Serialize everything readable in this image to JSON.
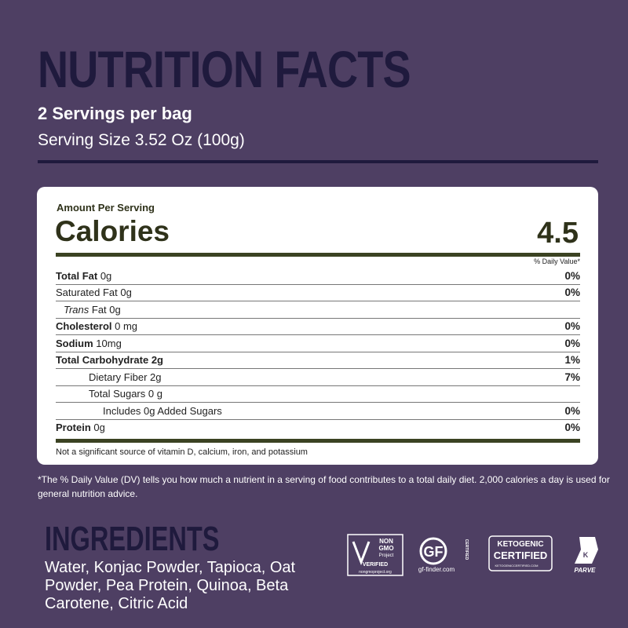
{
  "header": {
    "title": "NUTRITION FACTS",
    "servings": "2 Servings per bag",
    "serving_size": "Serving Size 3.52 Oz (100g)"
  },
  "label": {
    "amount_per_serving": "Amount Per Serving",
    "calories_label": "Calories",
    "calories_value": "4.5",
    "dv_header": "% Daily Value*",
    "rows": [
      {
        "name": "Total Fat",
        "amount": "0g",
        "dv": "0%",
        "bold": true,
        "indent": 0
      },
      {
        "name": "Saturated Fat 0g",
        "dv": "0%",
        "bold": false,
        "indent": 0
      },
      {
        "italic": "Trans",
        "name": "Fat 0g",
        "bold": false,
        "indent": 1
      },
      {
        "name": "Cholesterol",
        "amount": "0 mg",
        "dv": "0%",
        "bold": true,
        "indent": 0
      },
      {
        "name": "Sodium",
        "amount": "10mg",
        "dv": "0%",
        "bold": true,
        "indent": 0
      },
      {
        "name": "Total Carbohydrate 2g",
        "dv": "1%",
        "bold": true,
        "indent": 0
      },
      {
        "name": "Dietary Fiber 2g",
        "dv": "7%",
        "bold": false,
        "indent": 2
      },
      {
        "name": "Total Sugars 0 g",
        "bold": false,
        "indent": 2
      },
      {
        "name": "Includes 0g Added Sugars",
        "dv": "0%",
        "bold": false,
        "indent": 3
      },
      {
        "name": "Protein",
        "amount": "0g",
        "dv": "0%",
        "bold": true,
        "indent": 0
      }
    ],
    "footnote": "Not a significant source of vitamin D, calcium, iron, and potassium"
  },
  "dv_note": "*The % Daily Value (DV) tells you how much a nutrient in a serving of food contributes to a total daily diet. 2,000 calories a day is used for general nutrition advice.",
  "ingredients": {
    "title": "INGREDIENTS",
    "text": "Water, Konjac Powder, Tapioca, Oat Powder, Pea Protein, Quinoa, Beta Carotene, Citric Acid"
  },
  "badges": {
    "non_gmo": [
      "NON",
      "GMO",
      "Project",
      "VERIFIED",
      "nongmoproject.org"
    ],
    "gf": [
      "GF",
      "CERTIFIED",
      "gf-finder.com"
    ],
    "keto": [
      "KETOGENIC",
      "CERTIFIED",
      "KETOGENICCERTIFIED.COM"
    ],
    "parve": [
      "K",
      "PARVE"
    ]
  }
}
